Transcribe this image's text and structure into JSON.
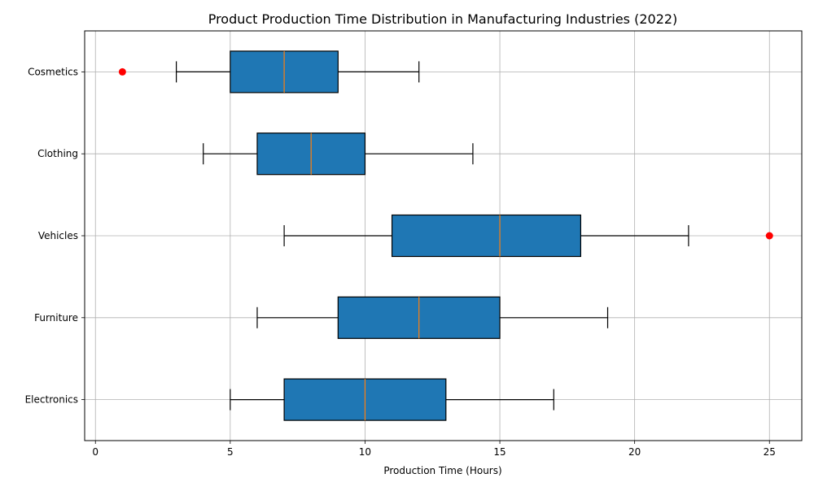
{
  "chart_data": {
    "type": "boxplot",
    "orientation": "horizontal",
    "title": "Product Production Time Distribution in Manufacturing Industries (2022)",
    "xlabel": "Production Time (Hours)",
    "ylabel": "",
    "xlim": [
      -0.4,
      26.2
    ],
    "xticks": [
      0,
      5,
      10,
      15,
      20,
      25
    ],
    "grid": true,
    "box_color": "#1f77b4",
    "median_color": "#ff7f0e",
    "outlier_color": "#ff0000",
    "categories": [
      "Electronics",
      "Furniture",
      "Vehicles",
      "Clothing",
      "Cosmetics"
    ],
    "boxes": [
      {
        "label": "Electronics",
        "whisker_low": 5,
        "q1": 7,
        "median": 10,
        "q3": 13,
        "whisker_high": 17,
        "outliers": []
      },
      {
        "label": "Furniture",
        "whisker_low": 6,
        "q1": 9,
        "median": 12,
        "q3": 15,
        "whisker_high": 19,
        "outliers": []
      },
      {
        "label": "Vehicles",
        "whisker_low": 7,
        "q1": 11,
        "median": 15,
        "q3": 18,
        "whisker_high": 22,
        "outliers": [
          25
        ]
      },
      {
        "label": "Clothing",
        "whisker_low": 4,
        "q1": 6,
        "median": 8,
        "q3": 10,
        "whisker_high": 14,
        "outliers": []
      },
      {
        "label": "Cosmetics",
        "whisker_low": 3,
        "q1": 5,
        "median": 7,
        "q3": 9,
        "whisker_high": 12,
        "outliers": [
          1
        ]
      }
    ]
  }
}
